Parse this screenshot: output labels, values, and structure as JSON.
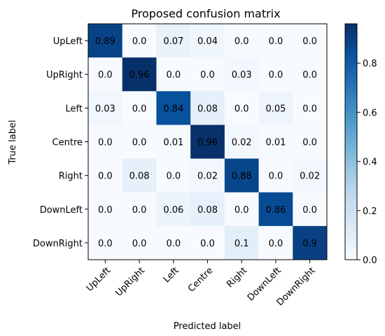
{
  "chart_data": {
    "type": "heatmap",
    "title": "Proposed confusion matrix",
    "xlabel": "Predicted label",
    "ylabel": "True label",
    "x_categories": [
      "UpLeft",
      "UpRight",
      "Left",
      "Centre",
      "Right",
      "DownLeft",
      "DownRight"
    ],
    "y_categories": [
      "UpLeft",
      "UpRight",
      "Left",
      "Centre",
      "Right",
      "DownLeft",
      "DownRight"
    ],
    "values": [
      [
        0.89,
        0.0,
        0.07,
        0.04,
        0.0,
        0.0,
        0.0
      ],
      [
        0.0,
        0.96,
        0.0,
        0.0,
        0.03,
        0.0,
        0.0
      ],
      [
        0.03,
        0.0,
        0.84,
        0.08,
        0.0,
        0.05,
        0.0
      ],
      [
        0.0,
        0.0,
        0.01,
        0.96,
        0.02,
        0.01,
        0.0
      ],
      [
        0.0,
        0.08,
        0.0,
        0.02,
        0.88,
        0.0,
        0.02
      ],
      [
        0.0,
        0.0,
        0.06,
        0.08,
        0.0,
        0.86,
        0.0
      ],
      [
        0.0,
        0.0,
        0.0,
        0.0,
        0.1,
        0.0,
        0.9
      ]
    ],
    "value_labels": [
      [
        "0.89",
        "0.0",
        "0.07",
        "0.04",
        "0.0",
        "0.0",
        "0.0"
      ],
      [
        "0.0",
        "0.96",
        "0.0",
        "0.0",
        "0.03",
        "0.0",
        "0.0"
      ],
      [
        "0.03",
        "0.0",
        "0.84",
        "0.08",
        "0.0",
        "0.05",
        "0.0"
      ],
      [
        "0.0",
        "0.0",
        "0.01",
        "0.96",
        "0.02",
        "0.01",
        "0.0"
      ],
      [
        "0.0",
        "0.08",
        "0.0",
        "0.02",
        "0.88",
        "0.0",
        "0.02"
      ],
      [
        "0.0",
        "0.0",
        "0.06",
        "0.08",
        "0.0",
        "0.86",
        "0.0"
      ],
      [
        "0.0",
        "0.0",
        "0.0",
        "0.0",
        "0.1",
        "0.0",
        "0.9"
      ]
    ],
    "colormap": "Blues",
    "colormap_stops": [
      "#f7fbff",
      "#deebf7",
      "#c6dbef",
      "#9ecae1",
      "#6baed6",
      "#4292c6",
      "#2171b5",
      "#08519c",
      "#08306b"
    ],
    "colorbar": {
      "range": [
        0.0,
        0.96
      ],
      "ticks": [
        0.0,
        0.2,
        0.4,
        0.6,
        0.8
      ],
      "tick_labels": [
        "0.0",
        "0.2",
        "0.4",
        "0.6",
        "0.8"
      ]
    },
    "grid": false
  }
}
